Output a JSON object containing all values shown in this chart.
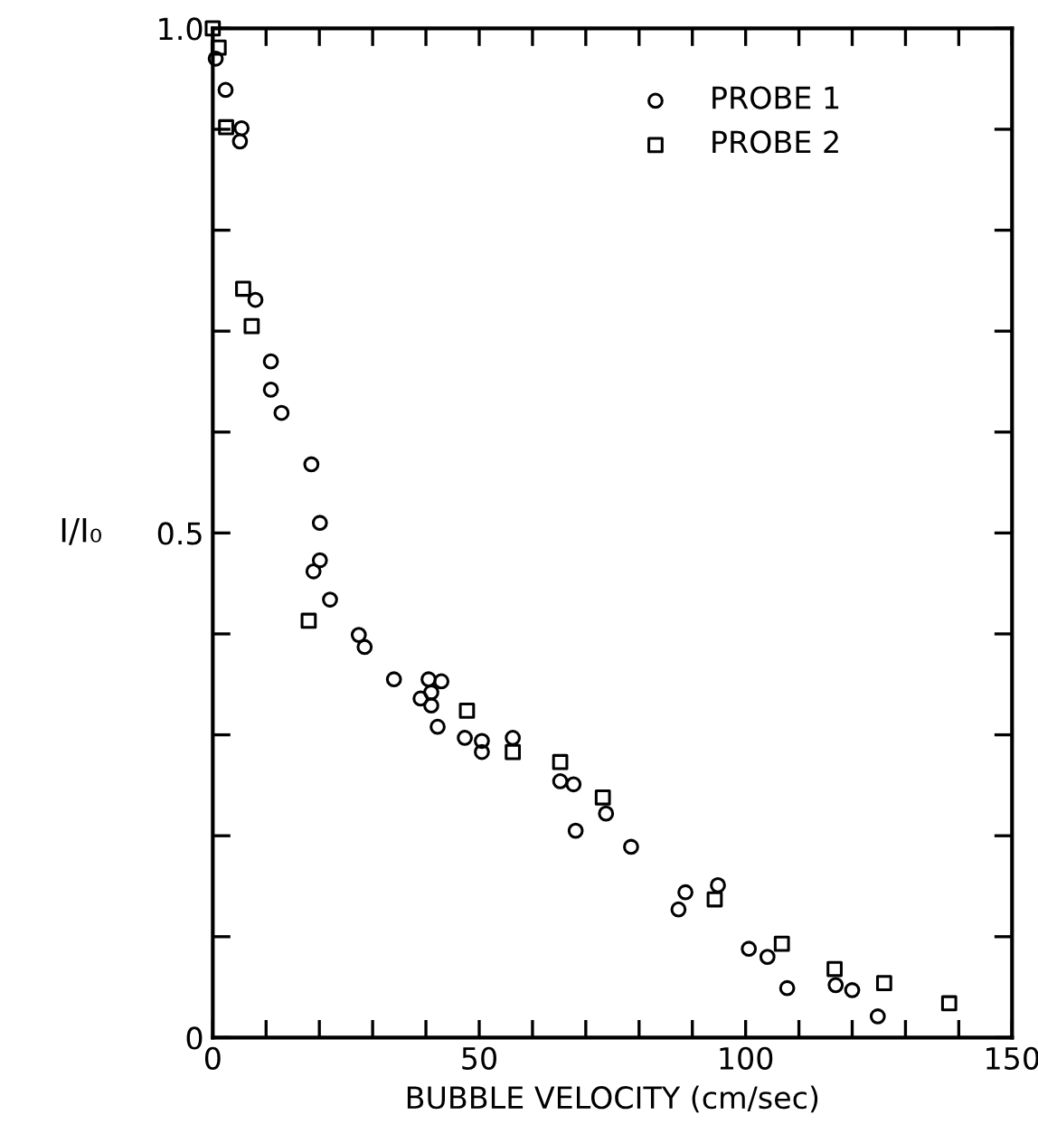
{
  "chart_data": {
    "type": "scatter",
    "xlabel": "BUBBLE VELOCITY (cm/sec)",
    "ylabel": "I/I₀",
    "xlim": [
      0,
      150
    ],
    "ylim": [
      0,
      1.0
    ],
    "xticks": [
      0,
      {
        "value": 10,
        "label": null
      },
      {
        "value": 20,
        "label": null
      },
      {
        "value": 30,
        "label": null
      },
      {
        "value": 40,
        "label": null
      },
      50,
      {
        "value": 60,
        "label": null
      },
      {
        "value": 70,
        "label": null
      },
      {
        "value": 80,
        "label": null
      },
      {
        "value": 90,
        "label": null
      },
      100,
      {
        "value": 110,
        "label": null
      },
      {
        "value": 120,
        "label": null
      },
      {
        "value": 130,
        "label": null
      },
      {
        "value": 140,
        "label": null
      },
      150
    ],
    "yticks": [
      0,
      {
        "value": 0.1,
        "label": null
      },
      {
        "value": 0.2,
        "label": null
      },
      {
        "value": 0.3,
        "label": null
      },
      {
        "value": 0.4,
        "label": null
      },
      0.5,
      {
        "value": 0.6,
        "label": null
      },
      {
        "value": 0.7,
        "label": null
      },
      {
        "value": 0.8,
        "label": null
      },
      {
        "value": 0.9,
        "label": null
      },
      {
        "value": 1.0,
        "label": "1.0"
      }
    ],
    "grid": false,
    "legend": "top right",
    "series": [
      {
        "name": "PROBE 1",
        "color": "#000000",
        "marker": "circle",
        "x": [
          0.55,
          2.4,
          5.4,
          5.1,
          8.0,
          10.9,
          10.9,
          12.9,
          18.5,
          20.1,
          20.1,
          18.9,
          22.0,
          27.4,
          28.5,
          34.0,
          39.0,
          40.5,
          41.0,
          41.0,
          42.9,
          42.2,
          47.3,
          50.5,
          50.5,
          56.3,
          65.2,
          67.7,
          68.1,
          73.8,
          78.5,
          87.4,
          88.7,
          94.8,
          100.6,
          104.1,
          107.8,
          116.9,
          120.0,
          124.8
        ],
        "values": [
          0.97,
          0.939,
          0.901,
          0.888,
          0.731,
          0.67,
          0.642,
          0.619,
          0.568,
          0.51,
          0.473,
          0.462,
          0.434,
          0.399,
          0.387,
          0.355,
          0.336,
          0.355,
          0.342,
          0.329,
          0.353,
          0.308,
          0.297,
          0.294,
          0.283,
          0.297,
          0.254,
          0.251,
          0.205,
          0.222,
          0.189,
          0.127,
          0.144,
          0.151,
          0.088,
          0.08,
          0.049,
          0.052,
          0.047,
          0.021
        ]
      },
      {
        "name": "PROBE 2",
        "color": "#000000",
        "marker": "square",
        "x": [
          0,
          1.1,
          2.5,
          5.7,
          7.3,
          18.0,
          47.7,
          56.3,
          65.2,
          73.2,
          94.2,
          106.8,
          116.7,
          126.0,
          138.2
        ],
        "values": [
          1.0,
          0.981,
          0.902,
          0.742,
          0.705,
          0.413,
          0.324,
          0.283,
          0.273,
          0.238,
          0.137,
          0.093,
          0.068,
          0.054,
          0.034
        ]
      }
    ]
  }
}
